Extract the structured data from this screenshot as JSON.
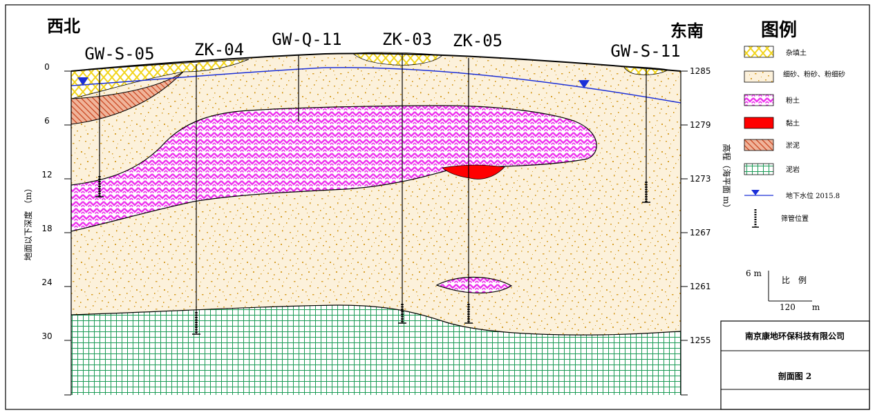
{
  "directions": {
    "left": "西北",
    "right": "东南"
  },
  "wells": [
    {
      "label": "GW-S-05"
    },
    {
      "label": "ZK-04"
    },
    {
      "label": "GW-Q-11"
    },
    {
      "label": "ZK-03"
    },
    {
      "label": "ZK-05"
    },
    {
      "label": "GW-S-11"
    }
  ],
  "left_axis": {
    "title": "地面以下深度 （m）",
    "ticks": [
      "0",
      "6",
      "12",
      "18",
      "24",
      "30"
    ]
  },
  "right_axis": {
    "title": "高程（海平面 m）",
    "ticks": [
      "1285",
      "1279",
      "1273",
      "1267",
      "1261",
      "1255"
    ]
  },
  "legend": {
    "title": "图例",
    "items": [
      {
        "label": "杂填土",
        "pattern": "fill-yellow"
      },
      {
        "label": "细砂、粉砂、粉细砂",
        "pattern": "sand-dots"
      },
      {
        "label": "粉土",
        "pattern": "magenta-zigzag"
      },
      {
        "label": "黏土",
        "pattern": "red-solid"
      },
      {
        "label": "淤泥",
        "pattern": "brown-hatch"
      },
      {
        "label": "泥岩",
        "pattern": "green-grid"
      },
      {
        "label": "地下水位 2015.8",
        "pattern": "water-level"
      },
      {
        "label": "筛管位置",
        "pattern": "screen-pipe"
      }
    ]
  },
  "scale": {
    "vertical": "6 m",
    "label": "比　例",
    "horizontal": "120　　m"
  },
  "title_block": {
    "company": "南京康地环保科技有限公司",
    "drawing": "剖面图 2"
  },
  "colors": {
    "sand_bg": "#fcf1db",
    "sand_dot": "#d7a02b",
    "fill_yellow": "#f2e12a",
    "silt_magenta": "#ee33ee",
    "clay_red": "#ff0000",
    "mud_brown": "#d45a30",
    "mudstone_green": "#1a9a55",
    "water_blue": "#1b2fd8"
  }
}
